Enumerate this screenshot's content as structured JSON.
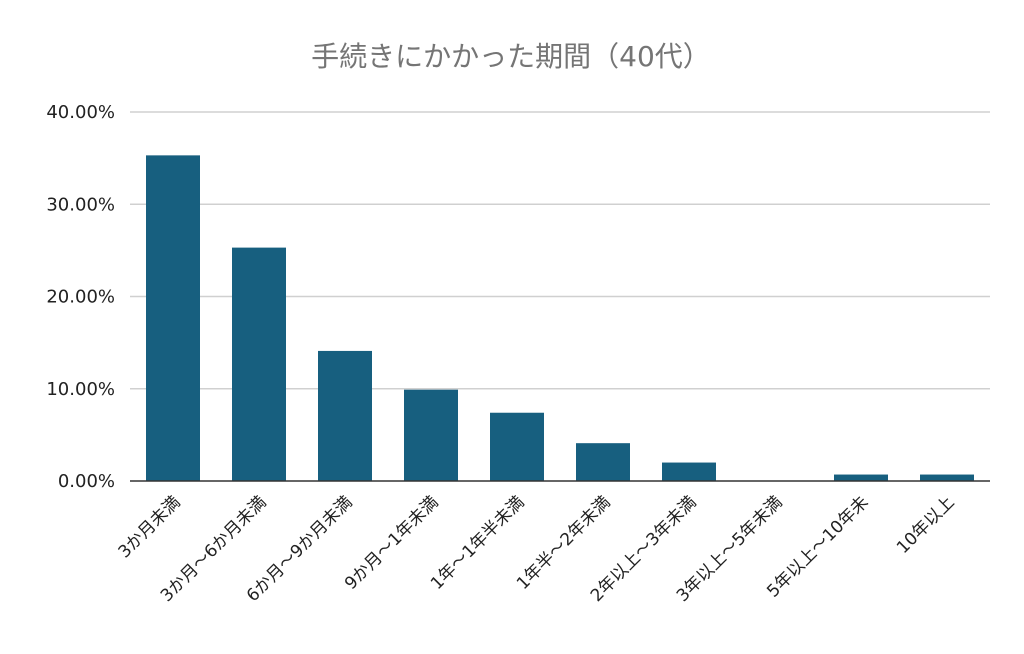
{
  "chart_data": {
    "type": "bar",
    "title": "手続きにかかった期間（40代）",
    "xlabel": "",
    "ylabel": "",
    "ylim": [
      0,
      40
    ],
    "y_tick_values": [
      0,
      10,
      20,
      30,
      40
    ],
    "y_tick_labels": [
      "0.00%",
      "10.00%",
      "20.00%",
      "30.00%",
      "40.00%"
    ],
    "categories": [
      "3か月未満",
      "3か月～6か月未満",
      "6か月～9か月未満",
      "9か月～1年未満",
      "1年～1年半未満",
      "1年半～2年未満",
      "2年以上～3年未満",
      "3年以上～5年未満",
      "5年以上～10年未",
      "10年以上"
    ],
    "values": [
      35.3,
      25.3,
      14.1,
      9.9,
      7.4,
      4.1,
      2.0,
      0.0,
      0.7,
      0.7
    ],
    "grid": true,
    "legend": "none",
    "colors": {
      "bar": "#175f7f",
      "grid": "#d0d0d0",
      "axis": "#333333",
      "title": "#757575",
      "text": "#222222"
    }
  }
}
